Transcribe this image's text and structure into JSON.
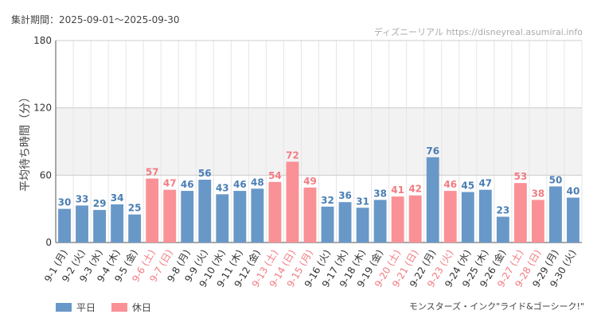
{
  "header": {
    "period": "集計期間：2025-09-01～2025-09-30",
    "source": "ディズニーリアル https://disneyreal.asumirai.info",
    "attraction": "モンスターズ・インク\"ライド&ゴーシーク!\""
  },
  "legend": {
    "weekday": "平日",
    "holiday": "休日"
  },
  "colors": {
    "weekday": "#6898c8",
    "holiday": "#fa9196",
    "weekday_text": "#4a7eb4",
    "holiday_text": "#f27c82"
  },
  "chart_data": {
    "type": "bar",
    "ylabel": "平均待ち時間（分）",
    "ylim": [
      0,
      180
    ],
    "yticks": [
      0,
      60,
      120,
      180
    ],
    "categories": [
      "9-1 (月)",
      "9-2 (火)",
      "9-3 (水)",
      "9-4 (木)",
      "9-5 (金)",
      "9-6 (土)",
      "9-7 (日)",
      "9-8 (月)",
      "9-9 (火)",
      "9-10 (水)",
      "9-11 (木)",
      "9-12 (金)",
      "9-13 (土)",
      "9-14 (日)",
      "9-15 (月)",
      "9-16 (火)",
      "9-17 (水)",
      "9-18 (木)",
      "9-19 (金)",
      "9-20 (土)",
      "9-21 (日)",
      "9-22 (月)",
      "9-23 (火)",
      "9-24 (水)",
      "9-25 (木)",
      "9-26 (金)",
      "9-27 (土)",
      "9-28 (日)",
      "9-29 (月)",
      "9-30 (火)"
    ],
    "values": [
      30,
      33,
      29,
      34,
      25,
      57,
      47,
      46,
      56,
      43,
      46,
      48,
      54,
      72,
      49,
      32,
      36,
      31,
      38,
      41,
      42,
      76,
      46,
      45,
      47,
      23,
      53,
      38,
      50,
      40
    ],
    "holiday": [
      false,
      false,
      false,
      false,
      false,
      true,
      true,
      false,
      false,
      false,
      false,
      false,
      true,
      true,
      true,
      false,
      false,
      false,
      false,
      true,
      true,
      false,
      true,
      false,
      false,
      false,
      true,
      true,
      false,
      false
    ]
  }
}
